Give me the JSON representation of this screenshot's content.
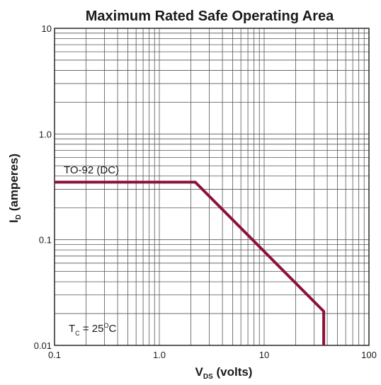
{
  "chart_data": {
    "type": "line",
    "title": "Maximum Rated Safe Operating Area",
    "xlabel": {
      "main": "V",
      "sub": "DS",
      "rest": " (volts)"
    },
    "ylabel": {
      "main": "I",
      "sub": "D",
      "rest": " (amperes)"
    },
    "xscale": "log",
    "yscale": "log",
    "xlim": [
      0.1,
      100
    ],
    "ylim": [
      0.01,
      10
    ],
    "x_ticks": [
      0.1,
      1.0,
      10,
      100
    ],
    "x_tick_labels": [
      "0.1",
      "1.0",
      "10",
      "100"
    ],
    "y_ticks": [
      0.01,
      0.1,
      1.0,
      10
    ],
    "y_tick_labels": [
      "0.01",
      "0.1",
      "1.0",
      "10"
    ],
    "grid": true,
    "series": [
      {
        "name": "TO-92 (DC)",
        "color": "#8c1136",
        "x": [
          0.1,
          2.2,
          37,
          37
        ],
        "y": [
          0.35,
          0.35,
          0.021,
          0.01
        ]
      }
    ],
    "annotations": {
      "condition": {
        "main": "T",
        "sub": "C",
        "rest": " = 25",
        "sup": "O",
        "unit": "C"
      }
    }
  }
}
